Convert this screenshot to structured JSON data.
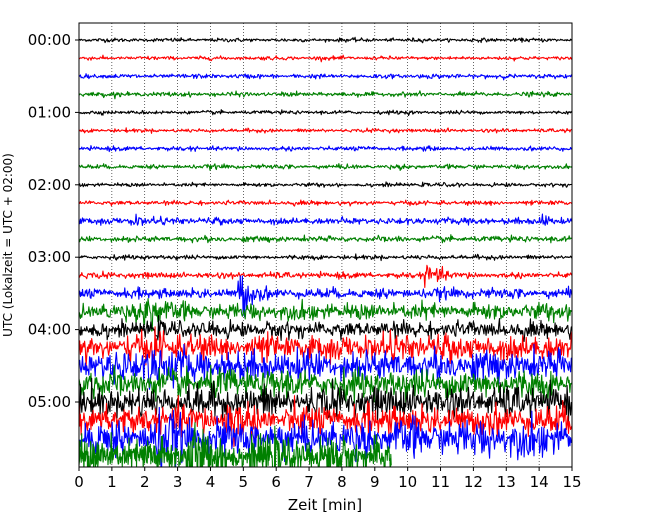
{
  "chart_data": {
    "type": "line",
    "xlabel": "Zeit  [min]",
    "ylabel": "UTC (Lokalzeit = UTC + 02:00)",
    "xlim": [
      0,
      15
    ],
    "x_ticks": [
      "0",
      "1",
      "2",
      "3",
      "4",
      "5",
      "6",
      "7",
      "8",
      "9",
      "10",
      "11",
      "12",
      "13",
      "14",
      "15"
    ],
    "y_ticks": [
      "00:00",
      "01:00",
      "02:00",
      "03:00",
      "04:00",
      "05:00"
    ],
    "trace_interval_min": 15,
    "traces_per_hour": 4,
    "trace_count": 24,
    "last_trace_end_min": 9.5,
    "color_cycle": [
      "#000000",
      "#ff0000",
      "#0000ff",
      "#008000"
    ],
    "trace_noise_amplitudes": [
      0.1,
      0.1,
      0.12,
      0.12,
      0.1,
      0.1,
      0.12,
      0.12,
      0.1,
      0.12,
      0.18,
      0.16,
      0.12,
      0.16,
      0.28,
      0.45,
      0.45,
      0.7,
      0.85,
      0.8,
      0.85,
      0.8,
      1.0,
      0.95
    ],
    "events": [
      {
        "trace": 10,
        "time_min": 1.6,
        "amplitude": 0.25
      },
      {
        "trace": 10,
        "time_min": 14.1,
        "amplitude": 0.25
      },
      {
        "trace": 14,
        "time_min": 4.9,
        "amplitude": 1.45
      },
      {
        "trace": 13,
        "time_min": 10.6,
        "amplitude": 0.95
      },
      {
        "trace": 15,
        "time_min": 2.05,
        "amplitude": 1.6
      },
      {
        "trace": 17,
        "time_min": 2.3,
        "amplitude": 0.9
      },
      {
        "trace": 18,
        "time_min": 2.1,
        "amplitude": 1.2
      },
      {
        "trace": 21,
        "time_min": 4.5,
        "amplitude": 1.1
      },
      {
        "trace": 22,
        "time_min": 2.45,
        "amplitude": 1.7
      },
      {
        "trace": 23,
        "time_min": 3.35,
        "amplitude": 1.9
      }
    ],
    "grid": true
  }
}
